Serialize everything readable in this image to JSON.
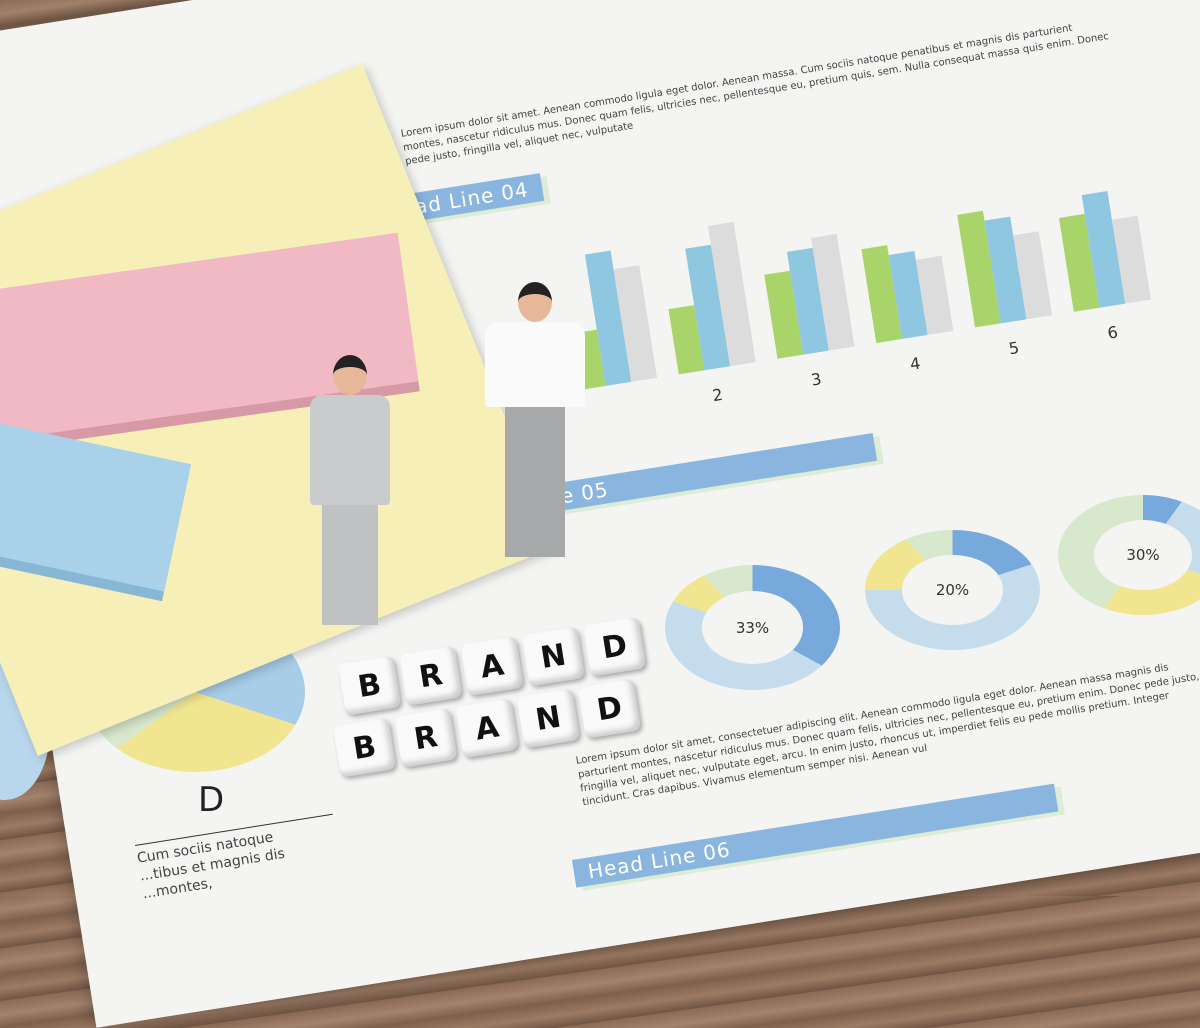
{
  "document": {
    "headlines": [
      "Head Line 04",
      "Head Line 05",
      "Head Line 06"
    ],
    "bar_numbers": [
      "2",
      "3",
      "4",
      "5",
      "6"
    ],
    "bar_colors": {
      "green": "#a9d46a",
      "blue": "#8fc6e0",
      "grey": "#dcdcdc"
    },
    "bar_groups": [
      [
        30,
        70,
        60
      ],
      [
        35,
        65,
        75
      ],
      [
        45,
        55,
        60
      ],
      [
        50,
        45,
        40
      ],
      [
        60,
        55,
        45
      ],
      [
        50,
        60,
        45
      ]
    ],
    "donuts": [
      {
        "label": "33%"
      },
      {
        "label": "20%"
      },
      {
        "label": "30%"
      }
    ],
    "pie_label": "D",
    "pie_caption": "Cum sociis natoque\n...tibus et magnis dis\n...montes,",
    "paragraph": "Lorem ipsum dolor sit amet, consectetuer adipiscing elit. Aenean commodo ligula eget dolor. Aenean massa magnis dis parturient montes, nascetur ridiculus mus. Donec quam felis, ultricies nec, pellentesque eu, pretium enim. Donec pede justo, fringilla vel, aliquet nec, vulputate eget, arcu. In enim justo, rhoncus ut, imperdiet felis eu pede mollis pretium. Integer tincidunt. Cras dapibus. Vivamus elementum semper nisi. Aenean vul",
    "top_text": "Lorem ipsum dolor sit amet. Aenean commodo ligula eget dolor. Aenean massa. Cum sociis natoque penatibus et magnis dis parturient montes, nascetur ridiculus mus. Donec quam felis, ultricies nec, pellentesque eu, pretium quis, sem. Nulla consequat massa quis enim. Donec pede justo, fringilla vel, aliquet nec, vulputate"
  },
  "cubes": {
    "row1": [
      "B",
      "R",
      "A",
      "N",
      "D"
    ],
    "row2": [
      "B",
      "R",
      "A",
      "N",
      "D"
    ]
  }
}
